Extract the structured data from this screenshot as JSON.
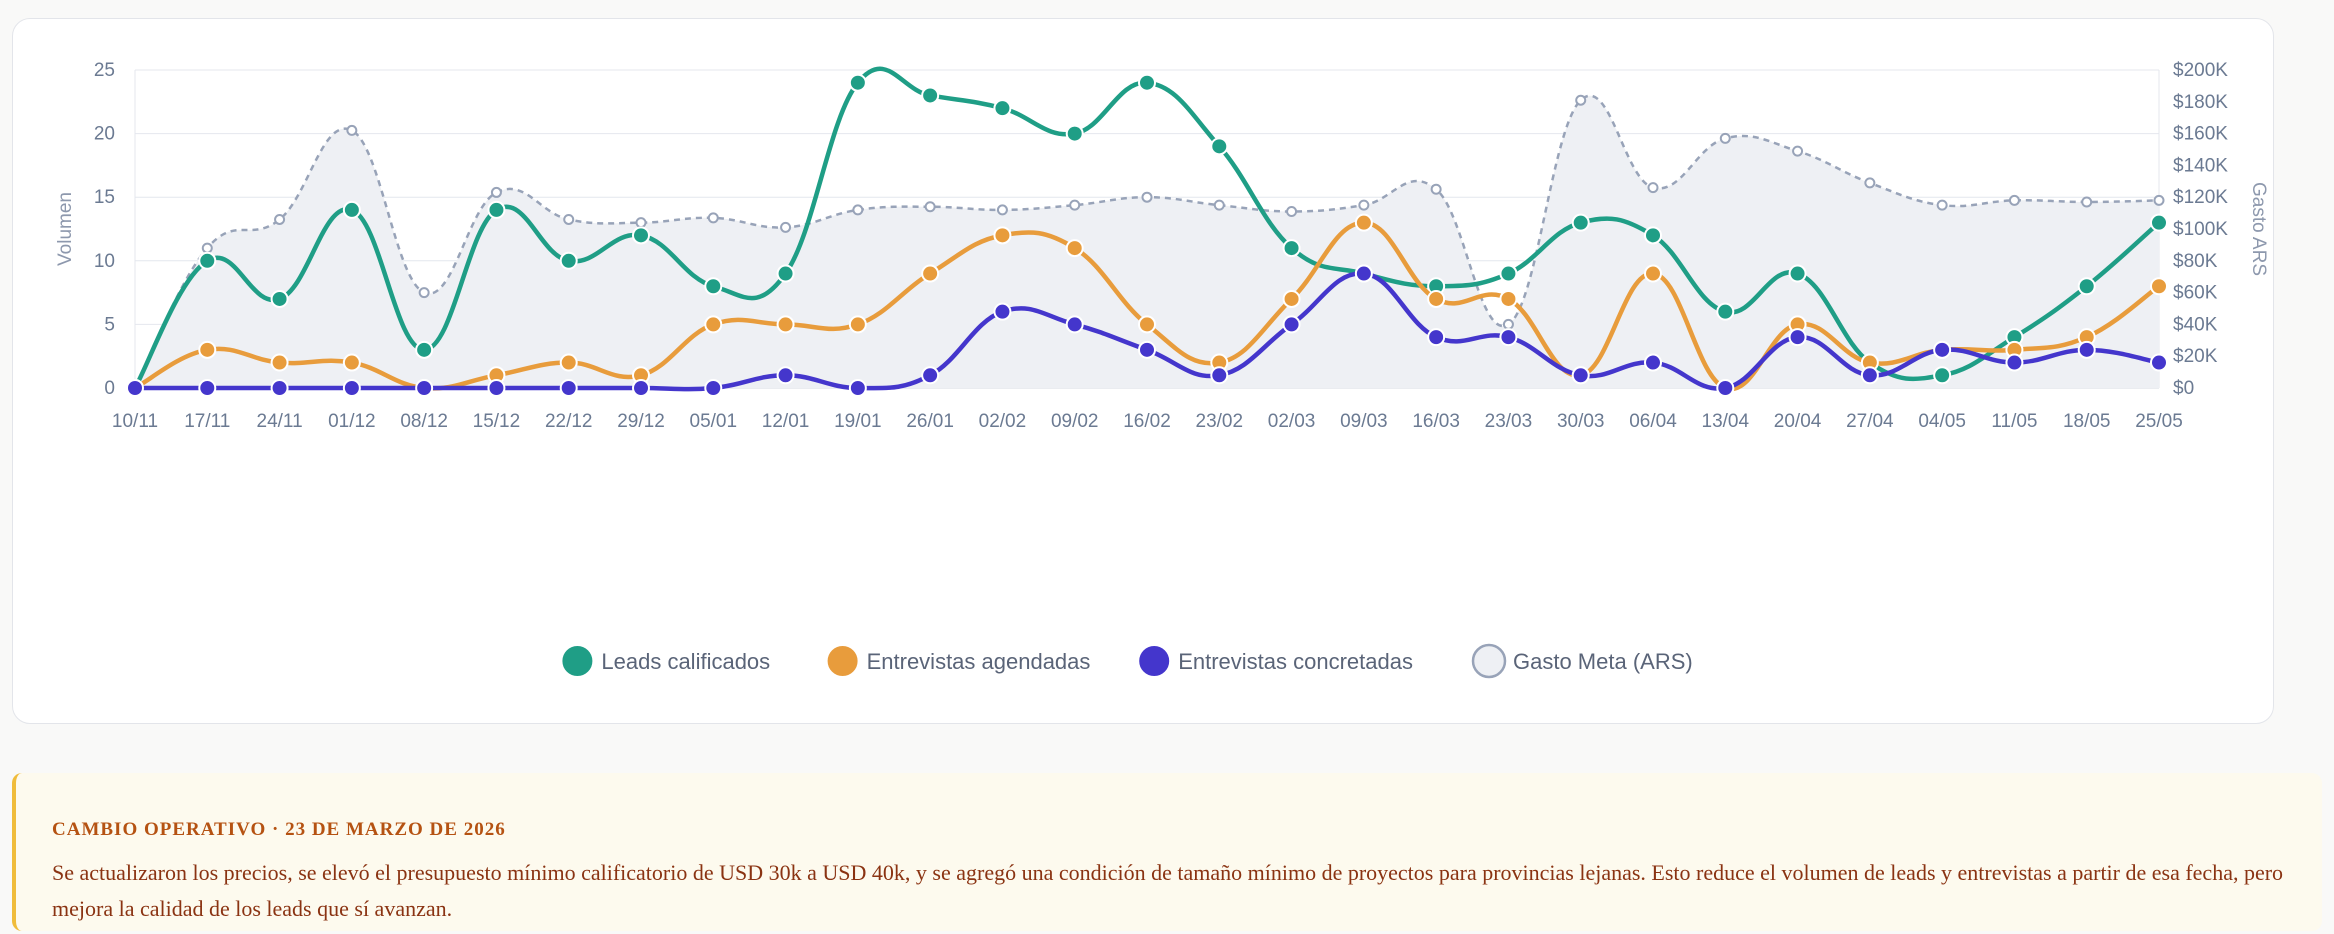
{
  "chart_data": {
    "type": "line",
    "categories": [
      "10/11",
      "17/11",
      "24/11",
      "01/12",
      "08/12",
      "15/12",
      "22/12",
      "29/12",
      "05/01",
      "12/01",
      "19/01",
      "26/01",
      "02/02",
      "09/02",
      "16/02",
      "23/02",
      "02/03",
      "09/03",
      "16/03",
      "23/03",
      "30/03",
      "06/04",
      "13/04",
      "20/04",
      "27/04",
      "04/05",
      "11/05",
      "18/05",
      "25/05"
    ],
    "y_left": {
      "label": "Volumen",
      "range": [
        0,
        25
      ],
      "ticks": [
        "0",
        "5",
        "10",
        "15",
        "20",
        "25"
      ],
      "tick_values": [
        0,
        5,
        10,
        15,
        20,
        25
      ]
    },
    "y_right": {
      "label": "Gasto ARS",
      "range": [
        0,
        200000
      ],
      "ticks": [
        "$0",
        "$20K",
        "$40K",
        "$60K",
        "$80K",
        "$100K",
        "$120K",
        "$140K",
        "$160K",
        "$180K",
        "$200K"
      ],
      "tick_values": [
        0,
        20000,
        40000,
        60000,
        80000,
        100000,
        120000,
        140000,
        160000,
        180000,
        200000
      ]
    },
    "grid": true,
    "legend_position": "bottom",
    "series": [
      {
        "name": "Leads calificados",
        "axis": "left",
        "color": "#1f9e86",
        "values": [
          0,
          10,
          7,
          14,
          3,
          14,
          10,
          12,
          8,
          9,
          24,
          23,
          22,
          20,
          24,
          19,
          11,
          9,
          8,
          9,
          13,
          12,
          6,
          9,
          2,
          1,
          4,
          8,
          13
        ]
      },
      {
        "name": "Entrevistas agendadas",
        "axis": "left",
        "color": "#e89c3c",
        "values": [
          0,
          3,
          2,
          2,
          0,
          1,
          2,
          1,
          5,
          5,
          5,
          9,
          12,
          11,
          5,
          2,
          7,
          13,
          7,
          7,
          1,
          9,
          0,
          5,
          2,
          3,
          3,
          4,
          8
        ]
      },
      {
        "name": "Entrevistas concretadas",
        "axis": "left",
        "color": "#4436cc",
        "values": [
          0,
          0,
          0,
          0,
          0,
          0,
          0,
          0,
          0,
          1,
          0,
          1,
          6,
          5,
          3,
          1,
          5,
          9,
          4,
          4,
          1,
          2,
          0,
          4,
          1,
          3,
          2,
          3,
          2
        ]
      },
      {
        "name": "Gasto Meta (ARS)",
        "axis": "right",
        "color": "#98a3b8",
        "fill": "#eef0f4",
        "values": [
          0,
          88000,
          106000,
          162000,
          60000,
          123000,
          106000,
          104000,
          107000,
          101000,
          112000,
          114000,
          112000,
          115000,
          120000,
          115000,
          111000,
          115000,
          125000,
          40000,
          181000,
          126000,
          157000,
          149000,
          129000,
          115000,
          118000,
          117000,
          118000
        ]
      }
    ]
  },
  "note": {
    "title": "CAMBIO OPERATIVO · 23 DE MARZO DE 2026",
    "body": "Se actualizaron los precios, se elevó el presupuesto mínimo calificatorio de USD 30k a USD 40k, y se agregó una condición de tamaño mínimo de proyectos para provincias lejanas. Esto reduce el volumen de leads y entrevistas a partir de esa fecha, pero mejora la calidad de los leads que sí avanzan."
  }
}
